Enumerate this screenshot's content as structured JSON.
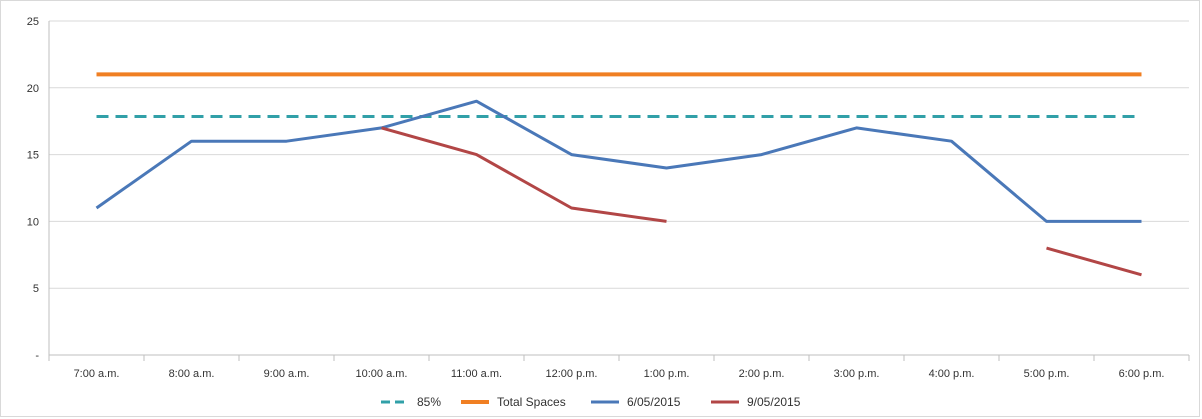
{
  "chart_data": {
    "type": "line",
    "categories": [
      "7:00 a.m.",
      "8:00 a.m.",
      "9:00 a.m.",
      "10:00 a.m.",
      "11:00 a.m.",
      "12:00 p.m.",
      "1:00 p.m.",
      "2:00 p.m.",
      "3:00 p.m.",
      "4:00 p.m.",
      "5:00 p.m.",
      "6:00 p.m."
    ],
    "ylim": [
      0,
      25
    ],
    "yticks": [
      {
        "value": 0,
        "label": "-"
      },
      {
        "value": 5,
        "label": "5"
      },
      {
        "value": 10,
        "label": "10"
      },
      {
        "value": 15,
        "label": "15"
      },
      {
        "value": 20,
        "label": "20"
      },
      {
        "value": 25,
        "label": "25"
      }
    ],
    "grid": true,
    "legend_position": "bottom",
    "series": [
      {
        "name": "85%",
        "color": "#31a0a8",
        "dashed": true,
        "values": [
          17.85,
          17.85,
          17.85,
          17.85,
          17.85,
          17.85,
          17.85,
          17.85,
          17.85,
          17.85,
          17.85,
          17.85
        ]
      },
      {
        "name": "Total Spaces",
        "color": "#f07f23",
        "dashed": false,
        "values": [
          21,
          21,
          21,
          21,
          21,
          21,
          21,
          21,
          21,
          21,
          21,
          21
        ]
      },
      {
        "name": "6/05/2015",
        "color": "#4a78b8",
        "dashed": false,
        "values": [
          11,
          16,
          16,
          17,
          19,
          15,
          14,
          15,
          17,
          16,
          10,
          10
        ]
      },
      {
        "name": "9/05/2015",
        "color": "#b24646",
        "dashed": false,
        "values": [
          11,
          null,
          null,
          17,
          15,
          11,
          10,
          null,
          null,
          null,
          8,
          6
        ]
      }
    ]
  }
}
